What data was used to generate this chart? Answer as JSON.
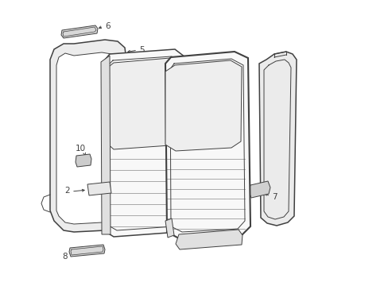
{
  "bg_color": "#ffffff",
  "line_color": "#404040",
  "figsize": [
    4.89,
    3.6
  ],
  "dpi": 100
}
